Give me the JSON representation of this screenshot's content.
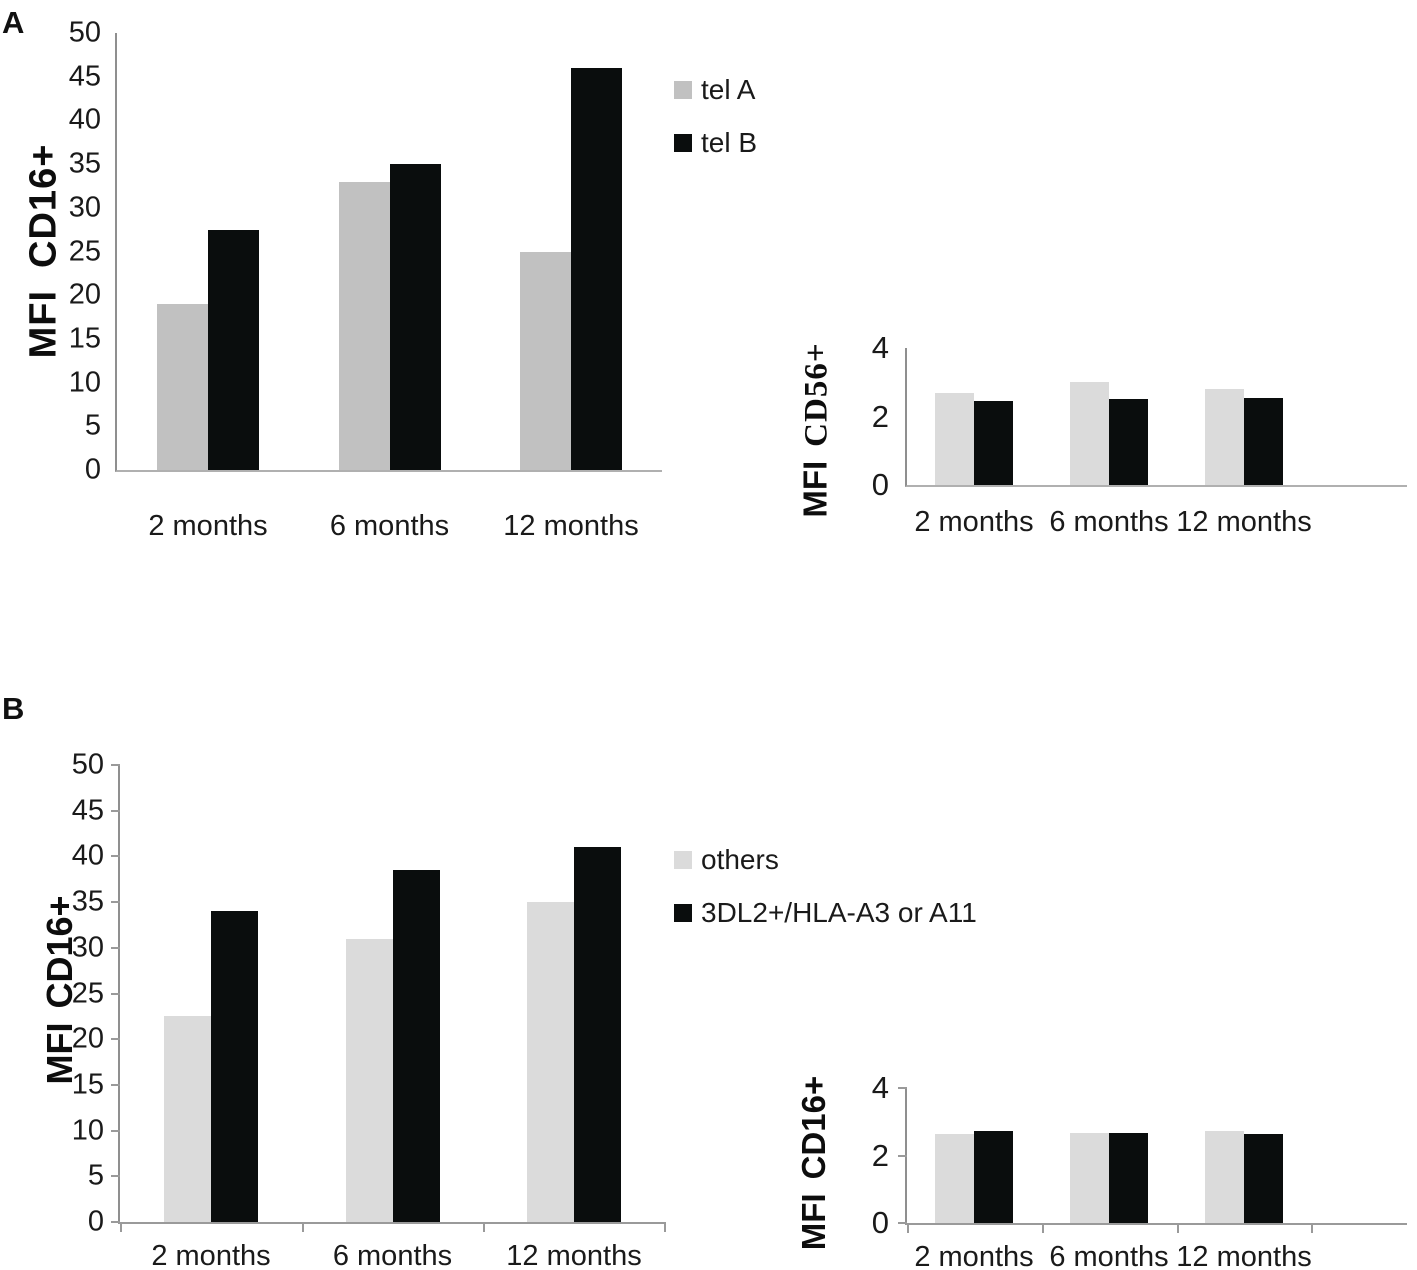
{
  "panels": {
    "A": {
      "label": "A"
    },
    "B": {
      "label": "B"
    }
  },
  "colors": {
    "background": "#ffffff",
    "y_axis": "#8f8f8f",
    "x_axis": "#b0b0b0",
    "bar_black": "#0a0d0d",
    "bar_gray_medium": "#c1c1c1",
    "bar_gray_light": "#dbdbdb"
  },
  "legends": {
    "A": [
      {
        "label": "tel A",
        "color": "#c1c1c1"
      },
      {
        "label": "tel B",
        "color": "#0a0d0d"
      }
    ],
    "B": [
      {
        "label": "others",
        "color": "#dbdbdb"
      },
      {
        "label": "3DL2+/HLA-A3 or A11",
        "color": "#0a0d0d"
      }
    ]
  },
  "chart_data": [
    {
      "panel": "A",
      "position": "left",
      "type": "bar",
      "title": "",
      "ylabel": "MFI CD16+",
      "ylabel_parts": [
        "MFI",
        "CD16+"
      ],
      "xlabel": "",
      "categories": [
        "2 months",
        "6 months",
        "12 months"
      ],
      "series": [
        {
          "name": "tel A",
          "color": "#c1c1c1",
          "values": [
            19,
            33,
            25
          ]
        },
        {
          "name": "tel B",
          "color": "#0a0d0d",
          "values": [
            27.5,
            35,
            46
          ]
        }
      ],
      "ylim": [
        0,
        50
      ],
      "yticks": [
        0,
        5,
        10,
        15,
        20,
        25,
        30,
        35,
        40,
        45,
        50
      ],
      "grid": false,
      "legend_position": "right"
    },
    {
      "panel": "A",
      "position": "right",
      "type": "bar",
      "title": "",
      "ylabel": "MFI CD56+",
      "ylabel_parts": [
        "MFI",
        "CD56+"
      ],
      "xlabel": "",
      "categories": [
        "2 months",
        "6 months",
        "12 months"
      ],
      "series": [
        {
          "name": "tel A",
          "color": "#dbdbdb",
          "values": [
            2.7,
            3.0,
            2.8
          ]
        },
        {
          "name": "tel B",
          "color": "#0a0d0d",
          "values": [
            2.45,
            2.5,
            2.55
          ]
        }
      ],
      "ylim": [
        0,
        4
      ],
      "yticks": [
        0,
        2,
        4
      ],
      "grid": false,
      "legend_position": "none"
    },
    {
      "panel": "B",
      "position": "left",
      "type": "bar",
      "title": "",
      "ylabel": "MFI CD16+",
      "ylabel_parts": [
        "MFI",
        "CD16+"
      ],
      "xlabel": "",
      "categories": [
        "2 months",
        "6 months",
        "12 months"
      ],
      "series": [
        {
          "name": "others",
          "color": "#dbdbdb",
          "values": [
            22.5,
            31,
            35
          ]
        },
        {
          "name": "3DL2+/HLA-A3 or A11",
          "color": "#0a0d0d",
          "values": [
            34,
            38.5,
            41
          ]
        }
      ],
      "ylim": [
        0,
        50
      ],
      "yticks": [
        0,
        5,
        10,
        15,
        20,
        25,
        30,
        35,
        40,
        45,
        50
      ],
      "grid": false,
      "legend_position": "right"
    },
    {
      "panel": "B",
      "position": "right",
      "type": "bar",
      "title": "",
      "ylabel": "MFI CD16+",
      "ylabel_parts": [
        "MFI",
        "CD16+"
      ],
      "xlabel": "",
      "categories": [
        "2 months",
        "6 months",
        "12 months"
      ],
      "series": [
        {
          "name": "others",
          "color": "#dbdbdb",
          "values": [
            2.65,
            2.68,
            2.72
          ]
        },
        {
          "name": "3DL2+/HLA-A3 or A11",
          "color": "#0a0d0d",
          "values": [
            2.72,
            2.66,
            2.63
          ]
        }
      ],
      "ylim": [
        0,
        4
      ],
      "yticks": [
        0,
        2,
        4
      ],
      "grid": false,
      "legend_position": "none"
    }
  ]
}
